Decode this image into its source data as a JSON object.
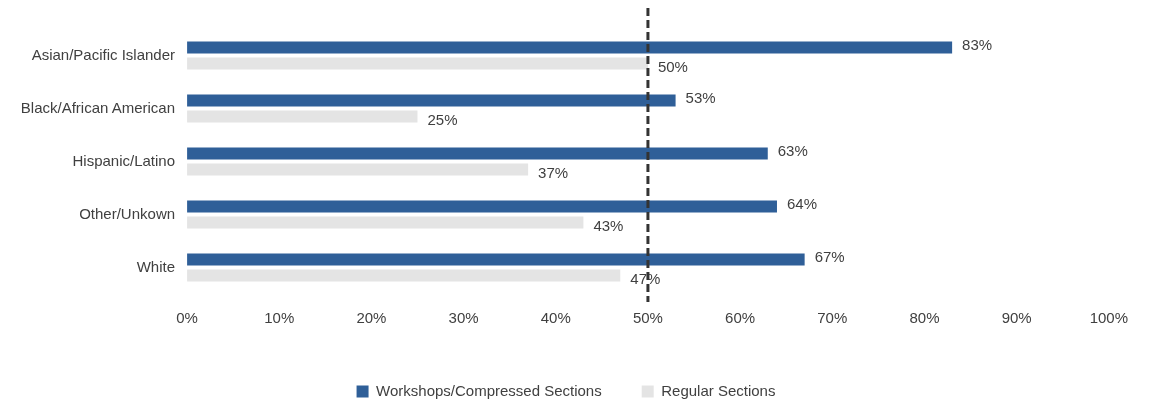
{
  "chart_data": {
    "type": "bar",
    "orientation": "horizontal",
    "categories": [
      "Asian/Pacific Islander",
      "Black/African American",
      "Hispanic/Latino",
      "Other/Unkown",
      "White"
    ],
    "series": [
      {
        "name": "Workshops/Compressed Sections",
        "color": "#2f5f98",
        "values": [
          83,
          53,
          63,
          64,
          67
        ],
        "value_labels": [
          "83%",
          "53%",
          "63%",
          "64%",
          "67%"
        ]
      },
      {
        "name": "Regular Sections",
        "color": "#e4e4e4",
        "values": [
          50,
          25,
          37,
          43,
          47
        ],
        "value_labels": [
          "50%",
          "25%",
          "37%",
          "43%",
          "47%"
        ]
      }
    ],
    "xlim": [
      0,
      100
    ],
    "xticks": [
      {
        "value": 0,
        "label": "0%"
      },
      {
        "value": 10,
        "label": "10%"
      },
      {
        "value": 20,
        "label": "20%"
      },
      {
        "value": 30,
        "label": "30%"
      },
      {
        "value": 40,
        "label": "40%"
      },
      {
        "value": 50,
        "label": "50%"
      },
      {
        "value": 60,
        "label": "60%"
      },
      {
        "value": 70,
        "label": "70%"
      },
      {
        "value": 80,
        "label": "80%"
      },
      {
        "value": 90,
        "label": "90%"
      },
      {
        "value": 100,
        "label": "100%"
      }
    ],
    "ref_lines": [
      {
        "axis": "x",
        "value": 50,
        "color": "#333333",
        "line_style": "dashed"
      }
    ],
    "grid": false,
    "legend": "bottom"
  }
}
